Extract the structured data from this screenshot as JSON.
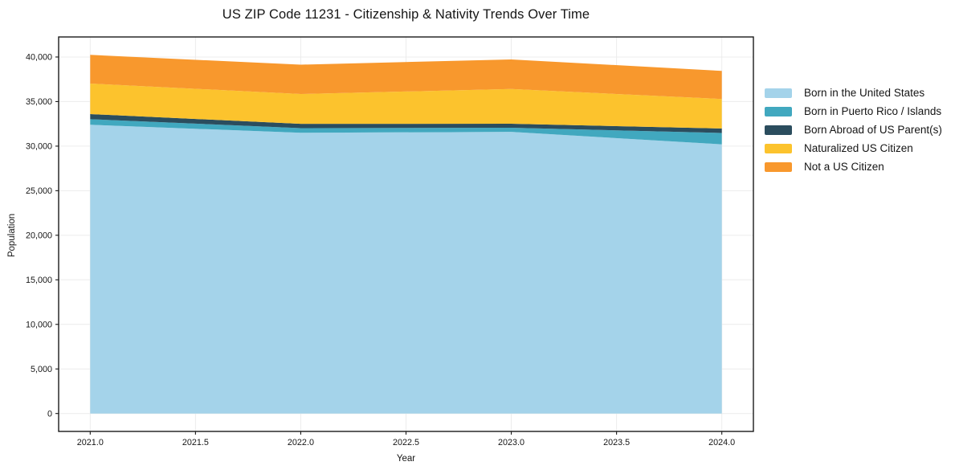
{
  "chart_data": {
    "type": "area",
    "stacked": true,
    "title": "US ZIP Code 11231 - Citizenship & Nativity Trends Over Time",
    "xlabel": "Year",
    "ylabel": "Population",
    "x": [
      2021,
      2022,
      2023,
      2024
    ],
    "series": [
      {
        "name": "Born in the United States",
        "color": "#a4d3ea",
        "values": [
          32400,
          31500,
          31600,
          30200
        ]
      },
      {
        "name": "Born in Puerto Rico / Islands",
        "color": "#41a8bf",
        "values": [
          620,
          520,
          460,
          1280
        ]
      },
      {
        "name": "Born Abroad of US Parent(s)",
        "color": "#2b4d5e",
        "values": [
          580,
          480,
          450,
          500
        ]
      },
      {
        "name": "Naturalized US Citizen",
        "color": "#fcc32d",
        "values": [
          3420,
          3350,
          3900,
          3310
        ]
      },
      {
        "name": "Not a US Citizen",
        "color": "#f8982d",
        "values": [
          3220,
          3290,
          3320,
          3150
        ]
      }
    ],
    "totals": [
      40240,
      39140,
      39730,
      38440
    ],
    "xlim": [
      2020.85,
      2024.15
    ],
    "ylim": [
      -2010,
      42250
    ],
    "xticks": {
      "values": [
        2021.0,
        2021.5,
        2022.0,
        2022.5,
        2023.0,
        2023.5,
        2024.0
      ],
      "labels": [
        "2021.0",
        "2021.5",
        "2022.0",
        "2022.5",
        "2023.0",
        "2023.5",
        "2024.0"
      ]
    },
    "yticks": {
      "values": [
        0,
        5000,
        10000,
        15000,
        20000,
        25000,
        30000,
        35000,
        40000
      ],
      "labels": [
        "0",
        "5,000",
        "10,000",
        "15,000",
        "20,000",
        "25,000",
        "30,000",
        "35,000",
        "40,000"
      ]
    },
    "grid": true,
    "legend_position": "outside-right",
    "grid_color": "#ececec",
    "spine_color": "#1a1a1a",
    "background_color": "#ffffff"
  }
}
